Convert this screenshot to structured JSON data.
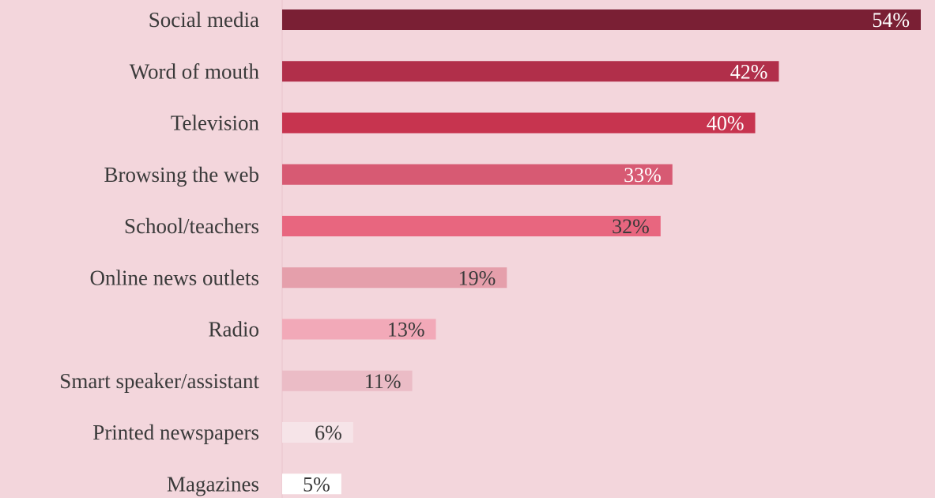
{
  "chart_data": {
    "type": "bar",
    "orientation": "horizontal",
    "categories": [
      "Social media",
      "Word of mouth",
      "Television",
      "Browsing the web",
      "School/teachers",
      "Online news outlets",
      "Radio",
      "Smart speaker/assistant",
      "Printed newspapers",
      "Magazines"
    ],
    "values": [
      54,
      42,
      40,
      33,
      32,
      19,
      13,
      11,
      6,
      5
    ],
    "value_labels": [
      "54%",
      "42%",
      "40%",
      "33%",
      "32%",
      "19%",
      "13%",
      "11%",
      "6%",
      "5%"
    ],
    "value_unit": "%",
    "title": "",
    "xlabel": "",
    "ylabel": "",
    "xlim": [
      0,
      54
    ],
    "grid": false,
    "legend": "none"
  },
  "colors": {
    "background": "#f3d6dc",
    "axis_line": "#e8c4cb",
    "category_text": "#3a3a3a",
    "bars": [
      "#7a1f34",
      "#b12f4a",
      "#c7344f",
      "#d75a73",
      "#e8667f",
      "#e59fab",
      "#f2a9b8",
      "#ebbcc6",
      "#f6e4e8",
      "#ffffff"
    ],
    "value_text": [
      "#ffffff",
      "#ffffff",
      "#ffffff",
      "#ffffff",
      "#3a3a3a",
      "#3a3a3a",
      "#3a3a3a",
      "#3a3a3a",
      "#3a3a3a",
      "#3a3a3a"
    ]
  }
}
